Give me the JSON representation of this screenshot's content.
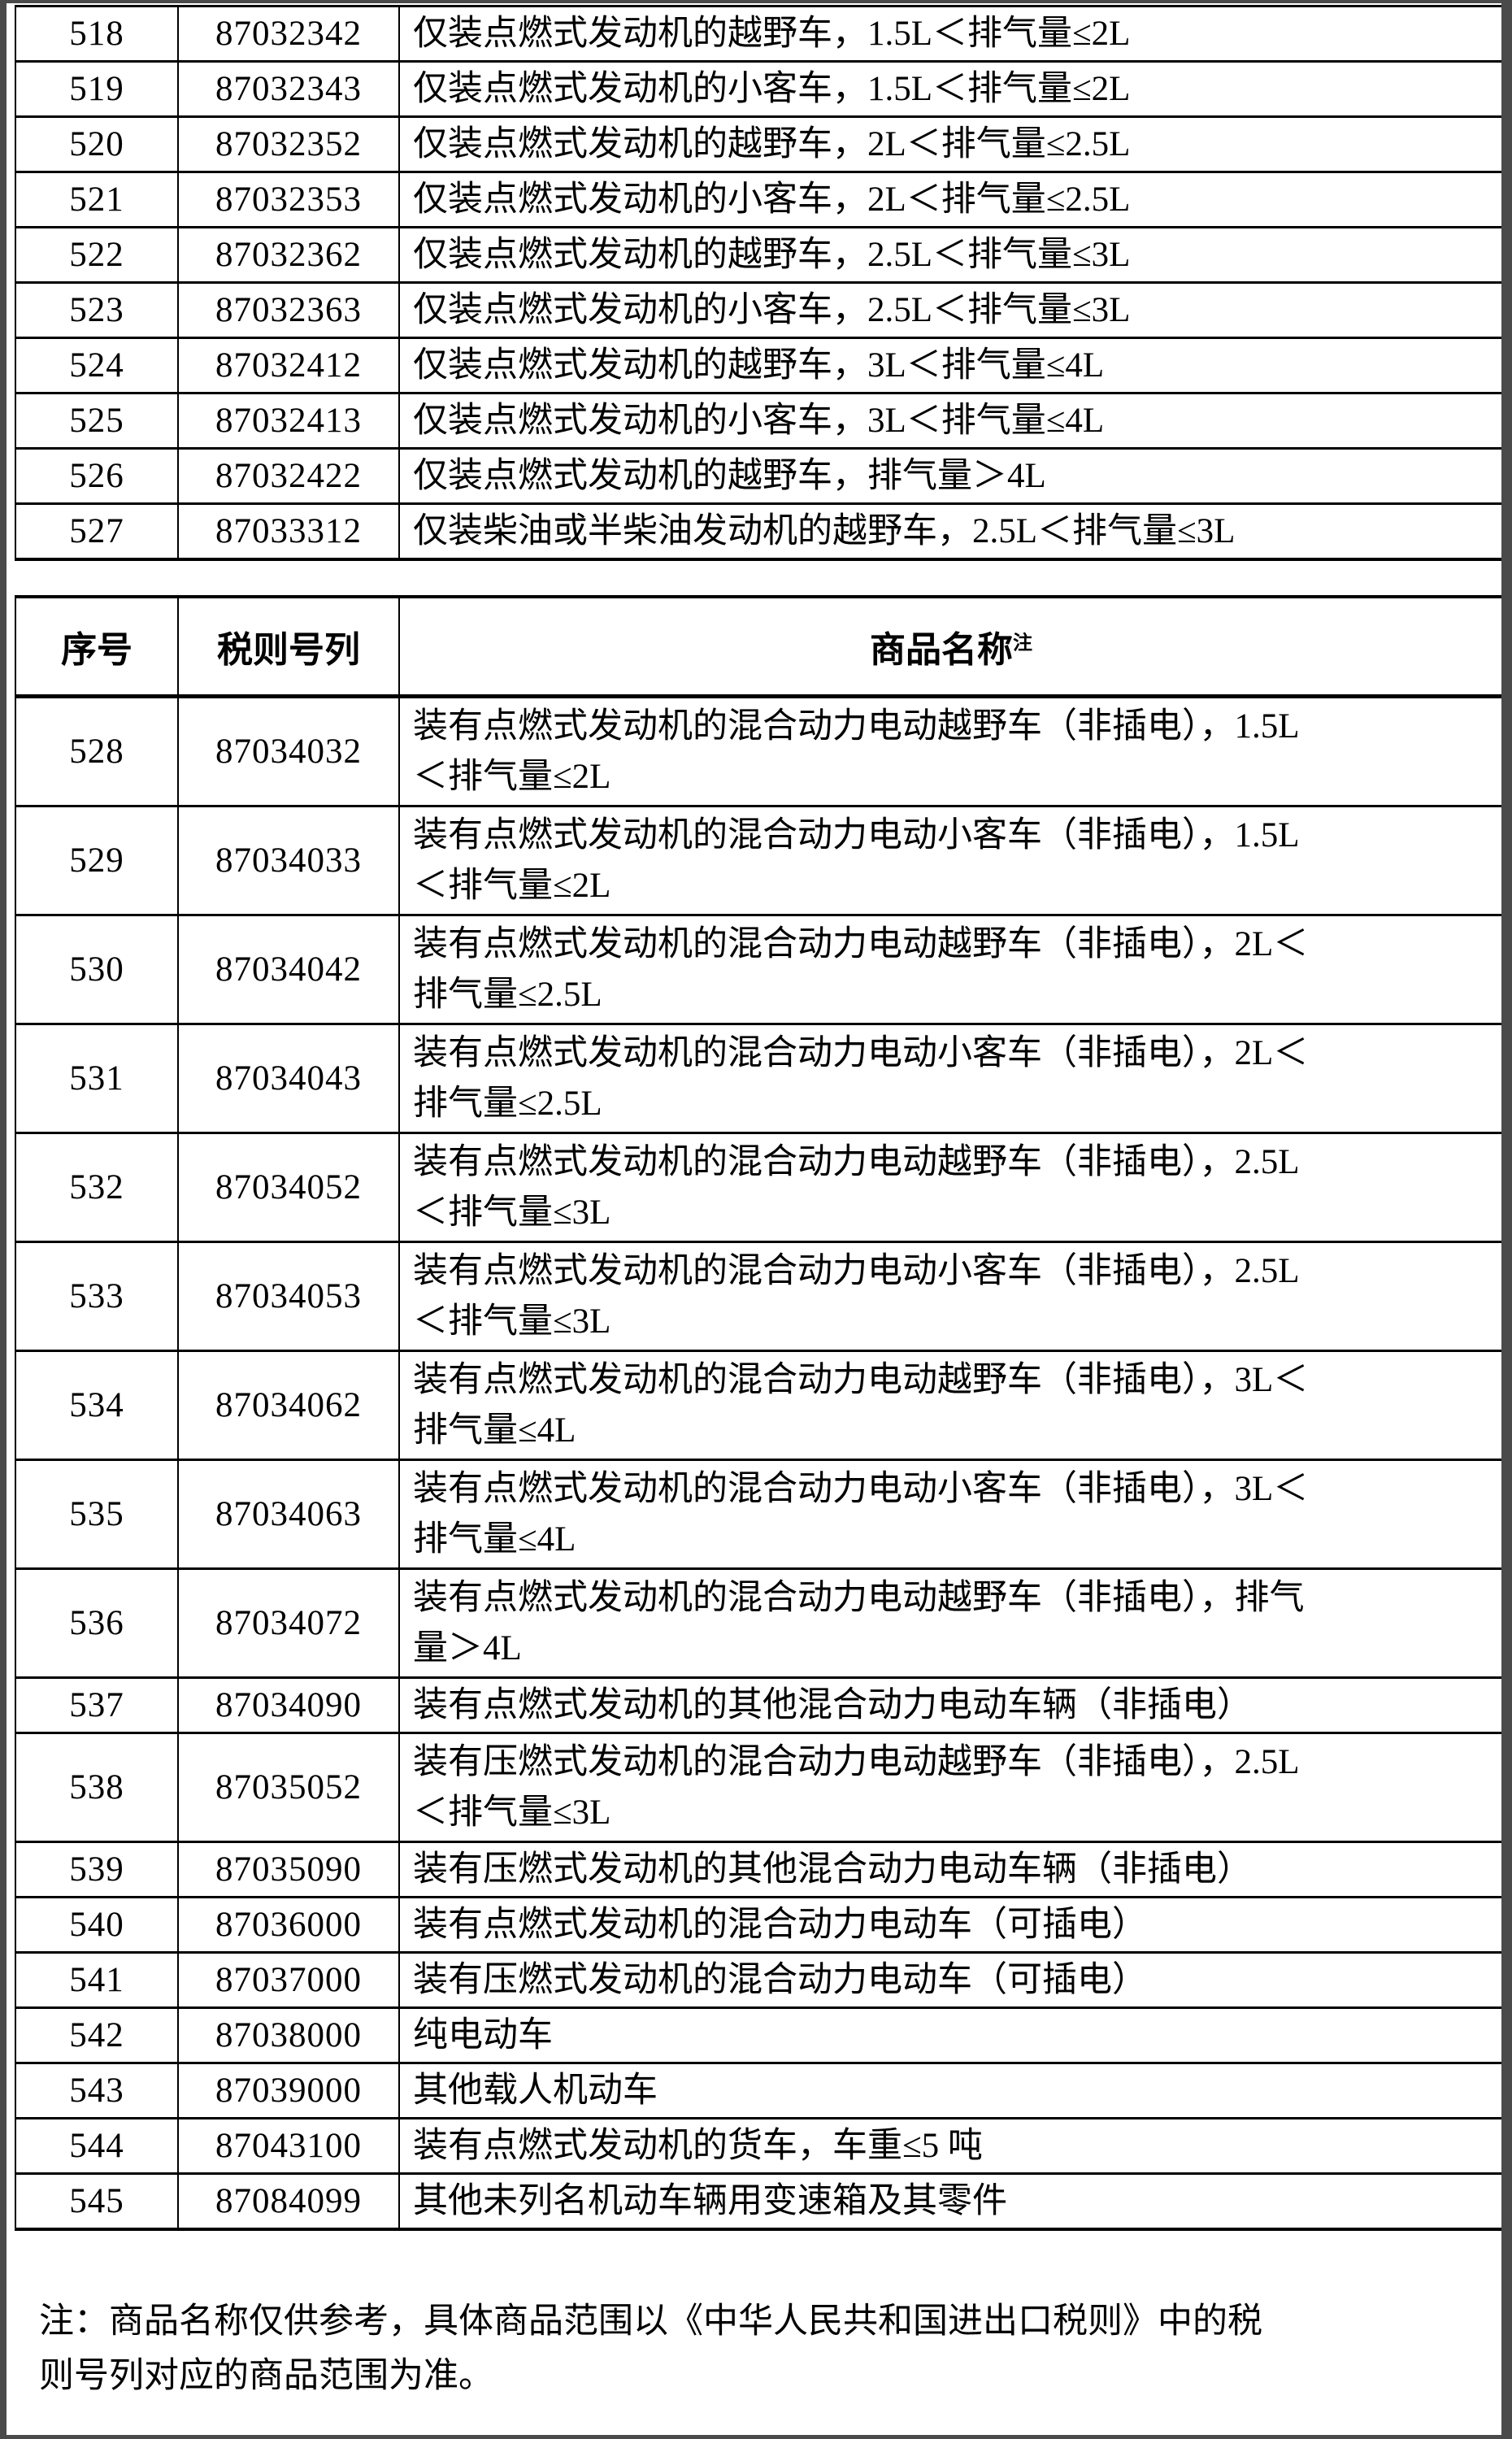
{
  "table1": {
    "rows": [
      {
        "no": "518",
        "code": "87032342",
        "name": "仅装点燃式发动机的越野车，1.5L＜排气量≤2L"
      },
      {
        "no": "519",
        "code": "87032343",
        "name": "仅装点燃式发动机的小客车，1.5L＜排气量≤2L"
      },
      {
        "no": "520",
        "code": "87032352",
        "name": "仅装点燃式发动机的越野车，2L＜排气量≤2.5L"
      },
      {
        "no": "521",
        "code": "87032353",
        "name": "仅装点燃式发动机的小客车，2L＜排气量≤2.5L"
      },
      {
        "no": "522",
        "code": "87032362",
        "name": "仅装点燃式发动机的越野车，2.5L＜排气量≤3L"
      },
      {
        "no": "523",
        "code": "87032363",
        "name": "仅装点燃式发动机的小客车，2.5L＜排气量≤3L"
      },
      {
        "no": "524",
        "code": "87032412",
        "name": "仅装点燃式发动机的越野车，3L＜排气量≤4L"
      },
      {
        "no": "525",
        "code": "87032413",
        "name": "仅装点燃式发动机的小客车，3L＜排气量≤4L"
      },
      {
        "no": "526",
        "code": "87032422",
        "name": "仅装点燃式发动机的越野车，排气量＞4L"
      },
      {
        "no": "527",
        "code": "87033312",
        "name": "仅装柴油或半柴油发动机的越野车，2.5L＜排气量≤3L"
      }
    ]
  },
  "table2": {
    "header": {
      "no": "序号",
      "code": "税则号列",
      "name": "商品名称",
      "note_mark": "注"
    },
    "rows": [
      {
        "no": "528",
        "code": "87034032",
        "name": "装有点燃式发动机的混合动力电动越野车（非插电），1.5L\n＜排气量≤2L"
      },
      {
        "no": "529",
        "code": "87034033",
        "name": "装有点燃式发动机的混合动力电动小客车（非插电），1.5L\n＜排气量≤2L"
      },
      {
        "no": "530",
        "code": "87034042",
        "name": "装有点燃式发动机的混合动力电动越野车（非插电），2L＜\n排气量≤2.5L"
      },
      {
        "no": "531",
        "code": "87034043",
        "name": "装有点燃式发动机的混合动力电动小客车（非插电），2L＜\n排气量≤2.5L"
      },
      {
        "no": "532",
        "code": "87034052",
        "name": "装有点燃式发动机的混合动力电动越野车（非插电），2.5L\n＜排气量≤3L"
      },
      {
        "no": "533",
        "code": "87034053",
        "name": "装有点燃式发动机的混合动力电动小客车（非插电），2.5L\n＜排气量≤3L"
      },
      {
        "no": "534",
        "code": "87034062",
        "name": "装有点燃式发动机的混合动力电动越野车（非插电），3L＜\n排气量≤4L"
      },
      {
        "no": "535",
        "code": "87034063",
        "name": "装有点燃式发动机的混合动力电动小客车（非插电），3L＜\n排气量≤4L"
      },
      {
        "no": "536",
        "code": "87034072",
        "name": "装有点燃式发动机的混合动力电动越野车（非插电），排气\n量＞4L"
      },
      {
        "no": "537",
        "code": "87034090",
        "name": "装有点燃式发动机的其他混合动力电动车辆（非插电）"
      },
      {
        "no": "538",
        "code": "87035052",
        "name": "装有压燃式发动机的混合动力电动越野车（非插电），2.5L\n＜排气量≤3L"
      },
      {
        "no": "539",
        "code": "87035090",
        "name": "装有压燃式发动机的其他混合动力电动车辆（非插电）"
      },
      {
        "no": "540",
        "code": "87036000",
        "name": "装有点燃式发动机的混合动力电动车（可插电）"
      },
      {
        "no": "541",
        "code": "87037000",
        "name": "装有压燃式发动机的混合动力电动车（可插电）"
      },
      {
        "no": "542",
        "code": "87038000",
        "name": "纯电动车"
      },
      {
        "no": "543",
        "code": "87039000",
        "name": "其他载人机动车"
      },
      {
        "no": "544",
        "code": "87043100",
        "name": "装有点燃式发动机的货车，车重≤5 吨"
      },
      {
        "no": "545",
        "code": "87084099",
        "name": "其他未列名机动车辆用变速箱及其零件"
      }
    ]
  },
  "footnote": {
    "text": "注：商品名称仅供参考，具体商品范围以《中华人民共和国进出口税则》中的税\n则号列对应的商品范围为准。"
  }
}
